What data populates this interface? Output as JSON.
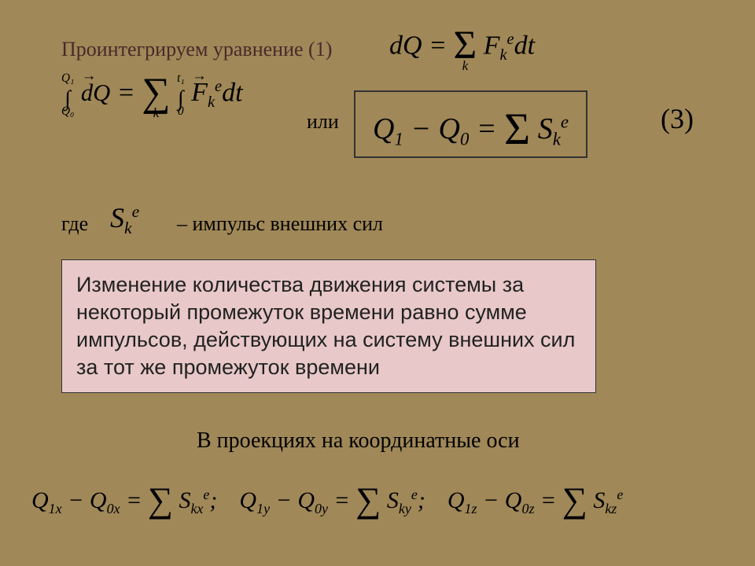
{
  "colors": {
    "background": "#a08858",
    "heading": "#4a2a2a",
    "box_bg": "#e8c8c8",
    "box_border": "#333333",
    "text": "#000000"
  },
  "typography": {
    "serif": "Times New Roman",
    "sans": "Arial",
    "base_size_pt": 26,
    "formula_size_pt": 34
  },
  "text": {
    "integrate_line": "Проинтегрируем уравнение (1)",
    "ili": "или",
    "eq_number": "(3)",
    "gde": "где",
    "impulse_desc": "– импульс внешних сил",
    "pink_box": "   Изменение количества движения системы за некоторый промежуток времени равно сумме импульсов, действующих на систему внешних сил за тот же промежуток времени",
    "projections": "В проекциях на координатные оси"
  },
  "formulas": {
    "dQ_sum": {
      "lhs": "dQ",
      "rhs_op": "Σ",
      "rhs_sub": "k",
      "rhs_term": "F",
      "rhs_term_sub": "k",
      "rhs_term_sup": "e",
      "rhs_tail": "dt"
    },
    "integral": {
      "int1_lower": "Q₀",
      "int1_upper": "Q₁",
      "int1_body_vec": "dQ",
      "equals": "=",
      "sum_sub": "k",
      "int2_lower": "0",
      "int2_upper": "t₁",
      "term_vec": "F",
      "term_sub": "k",
      "term_sup": "e",
      "tail": "dt"
    },
    "boxed": {
      "Q1": "Q",
      "Q1_sub": "1",
      "minus": "−",
      "Q0": "Q",
      "Q0_sub": "0",
      "equals": "=",
      "sum": "Σ",
      "S": "S",
      "S_sub": "k",
      "S_sup": "e"
    },
    "Sk": {
      "S": "S",
      "sub": "k",
      "sup": "e"
    },
    "projections": [
      {
        "Q1": "Q",
        "s1": "1x",
        "Q0": "Q",
        "s0": "0x",
        "S": "S",
        "Ssub": "kx",
        "sup": "e",
        "tail": ";"
      },
      {
        "Q1": "Q",
        "s1": "1y",
        "Q0": "Q",
        "s0": "0y",
        "S": "S",
        "Ssub": "ky",
        "sup": "e",
        "tail": ";"
      },
      {
        "Q1": "Q",
        "s1": "1z",
        "Q0": "Q",
        "s0": "0z",
        "S": "S",
        "Ssub": "kz",
        "sup": "e",
        "tail": ""
      }
    ]
  }
}
